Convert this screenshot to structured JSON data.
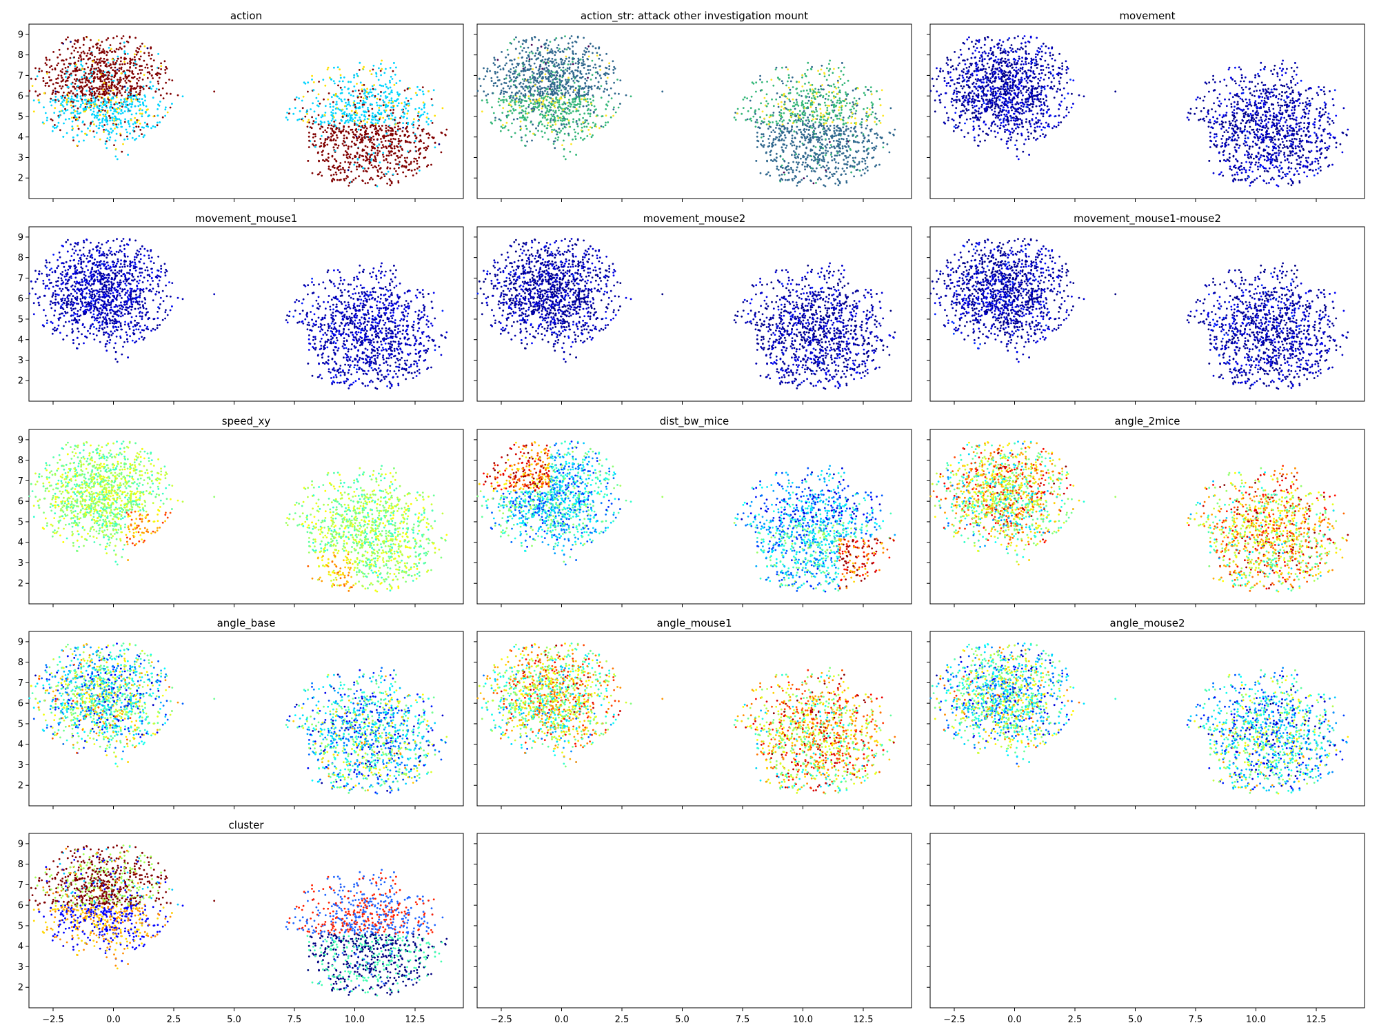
{
  "figure": {
    "shared_xlim": [
      -3.5,
      14.5
    ],
    "shared_ylim": [
      1.0,
      9.5
    ],
    "x_ticks": [
      -2.5,
      0.0,
      2.5,
      5.0,
      7.5,
      10.0,
      12.5
    ],
    "x_tick_labels": [
      "−2.5",
      "0.0",
      "2.5",
      "5.0",
      "7.5",
      "10.0",
      "12.5"
    ],
    "y_ticks": [
      2,
      3,
      4,
      5,
      6,
      7,
      8,
      9
    ],
    "y_tick_labels": [
      "2",
      "3",
      "4",
      "5",
      "6",
      "7",
      "8",
      "9"
    ],
    "colormap": "jet"
  },
  "chart_data": [
    {
      "type": "scatter",
      "title": "action",
      "ylim": [
        1.0,
        9.5
      ],
      "xlim": [
        -3.5,
        14.5
      ],
      "color_scheme": "discrete",
      "palette": [
        "#800000",
        "#00d4ff",
        "#ffe000",
        "#000080"
      ],
      "region_weights": {
        "left_upper": [
          0.85,
          0.1,
          0.03,
          0.02
        ],
        "left_lower": [
          0.15,
          0.7,
          0.15,
          0.0
        ],
        "right_upper": [
          0.15,
          0.7,
          0.15,
          0.0
        ],
        "right_lower": [
          0.92,
          0.06,
          0.0,
          0.02
        ]
      }
    },
    {
      "type": "scatter",
      "title": "action_str: attack other investigation mount",
      "ylim": [
        1.0,
        9.5
      ],
      "xlim": [
        -3.5,
        14.5
      ],
      "color_scheme": "discrete",
      "palette": [
        "#31688e",
        "#35b779",
        "#fde725",
        "#440154"
      ],
      "region_weights": {
        "left_upper": [
          0.85,
          0.1,
          0.03,
          0.02
        ],
        "left_lower": [
          0.15,
          0.7,
          0.15,
          0.0
        ],
        "right_upper": [
          0.2,
          0.65,
          0.15,
          0.0
        ],
        "right_lower": [
          0.92,
          0.06,
          0.0,
          0.02
        ]
      }
    },
    {
      "type": "scatter",
      "title": "movement",
      "ylim": [
        1.0,
        9.5
      ],
      "xlim": [
        -3.5,
        14.5
      ],
      "color_scheme": "jet",
      "value_range": [
        0.0,
        0.2
      ]
    },
    {
      "type": "scatter",
      "title": "movement_mouse1",
      "ylim": [
        1.0,
        9.5
      ],
      "xlim": [
        -3.5,
        14.5
      ],
      "color_scheme": "jet",
      "value_range": [
        0.02,
        0.18
      ]
    },
    {
      "type": "scatter",
      "title": "movement_mouse2",
      "ylim": [
        1.0,
        9.5
      ],
      "xlim": [
        -3.5,
        14.5
      ],
      "color_scheme": "jet",
      "value_range": [
        0.0,
        0.18
      ]
    },
    {
      "type": "scatter",
      "title": "movement_mouse1-mouse2",
      "ylim": [
        1.0,
        9.5
      ],
      "xlim": [
        -3.5,
        14.5
      ],
      "color_scheme": "jet",
      "value_range": [
        0.0,
        0.2
      ]
    },
    {
      "type": "scatter",
      "title": "speed_xy",
      "ylim": [
        1.0,
        9.5
      ],
      "xlim": [
        -3.5,
        14.5
      ],
      "color_scheme": "jet",
      "value_range": [
        0.3,
        0.75
      ]
    },
    {
      "type": "scatter",
      "title": "dist_bw_mice",
      "ylim": [
        1.0,
        9.5
      ],
      "xlim": [
        -3.5,
        14.5
      ],
      "color_scheme": "jet",
      "value_range": [
        0.1,
        1.0
      ]
    },
    {
      "type": "scatter",
      "title": "angle_2mice",
      "ylim": [
        1.0,
        9.5
      ],
      "xlim": [
        -3.5,
        14.5
      ],
      "color_scheme": "jet",
      "value_range": [
        0.1,
        1.0
      ]
    },
    {
      "type": "scatter",
      "title": "angle_base",
      "ylim": [
        1.0,
        9.5
      ],
      "xlim": [
        -3.5,
        14.5
      ],
      "color_scheme": "jet",
      "value_range": [
        0.05,
        1.0
      ]
    },
    {
      "type": "scatter",
      "title": "angle_mouse1",
      "ylim": [
        1.0,
        9.5
      ],
      "xlim": [
        -3.5,
        14.5
      ],
      "color_scheme": "jet",
      "value_range": [
        0.1,
        0.95
      ]
    },
    {
      "type": "scatter",
      "title": "angle_mouse2",
      "ylim": [
        1.0,
        9.5
      ],
      "xlim": [
        -3.5,
        14.5
      ],
      "color_scheme": "jet",
      "value_range": [
        0.05,
        1.0
      ]
    },
    {
      "type": "scatter",
      "title": "cluster",
      "ylim": [
        1.0,
        9.5
      ],
      "xlim": [
        -3.5,
        14.5
      ],
      "color_scheme": "discrete",
      "palette": [
        "#800000",
        "#0000ff",
        "#ff8c00",
        "#ffd700",
        "#00c8ff",
        "#ff2000",
        "#1e64ff",
        "#40ffb0",
        "#000080",
        "#a0ff50"
      ],
      "region_weights": {
        "left_upper": [
          0.6,
          0.05,
          0.05,
          0.0,
          0.05,
          0.0,
          0.0,
          0.0,
          0.0,
          0.25
        ],
        "left_lower": [
          0.0,
          0.45,
          0.3,
          0.25,
          0.0,
          0.0,
          0.0,
          0.0,
          0.0,
          0.0
        ],
        "right_upper": [
          0.0,
          0.0,
          0.0,
          0.0,
          0.0,
          0.5,
          0.5,
          0.0,
          0.0,
          0.0
        ],
        "right_lower": [
          0.0,
          0.0,
          0.0,
          0.0,
          0.0,
          0.0,
          0.05,
          0.4,
          0.55,
          0.0
        ]
      }
    }
  ],
  "empty_panels": 2
}
